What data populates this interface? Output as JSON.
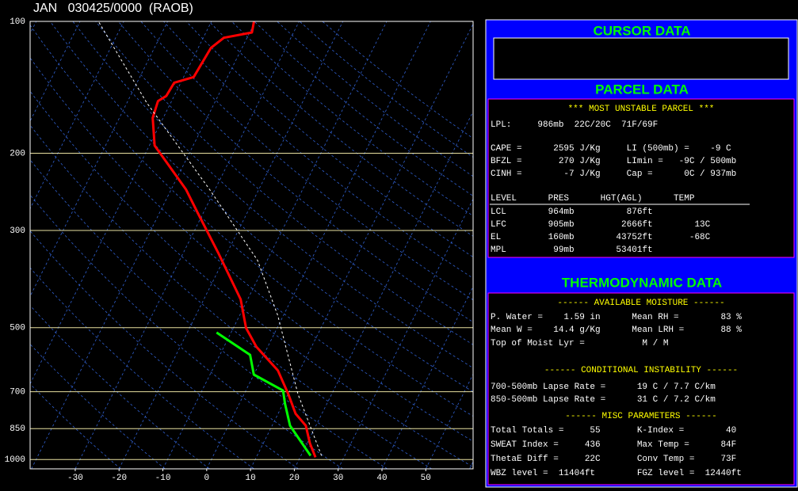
{
  "chart_data": {
    "type": "skewt",
    "title": "JAN   030425/0000  (RAOB)",
    "ylim": [
      100,
      1050
    ],
    "yticks": [
      100,
      200,
      300,
      500,
      700,
      850,
      1000
    ],
    "log_scale": true,
    "grid": true,
    "xlim": [
      -40.3,
      60.8
    ],
    "xticks": [
      -30,
      -20,
      -10,
      0,
      10,
      20,
      30,
      40,
      50
    ],
    "series": [
      {
        "name": "Temperature",
        "color": "#ff0000",
        "pressure": [
          988,
          917,
          837,
          786,
          709,
          626,
          553,
          501,
          431,
          337,
          274,
          242,
          192,
          166,
          152,
          148,
          138,
          134,
          115,
          109,
          106,
          100
        ],
        "values": [
          23.5,
          20.6,
          17.7,
          14.0,
          10.1,
          5.0,
          -2.6,
          -7.1,
          -11.6,
          -22.1,
          -31.2,
          -36.6,
          -48.8,
          -52.4,
          -53.1,
          -51.8,
          -51.5,
          -47.7,
          -47.1,
          -45.3,
          -39.5,
          -40.3
        ]
      },
      {
        "name": "Dewpoint",
        "color": "#00ff00",
        "pressure": [
          980,
          917,
          837,
          745,
          696,
          640,
          577,
          513
        ],
        "values": [
          22.2,
          18.8,
          14.1,
          10.4,
          8.5,
          0.0,
          -3.1,
          -13.3
        ]
      },
      {
        "name": "Parcel",
        "color": "#ffffff",
        "pressure": [
          980,
          709,
          469,
          351,
          242,
          153,
          100
        ],
        "values": [
          24.7,
          12.3,
          -1.3,
          -12.2,
          -31.2,
          -55.6,
          -75.8
        ]
      }
    ]
  },
  "panel": {
    "cursor_title": "CURSOR DATA",
    "parcel_title": "PARCEL DATA",
    "parcel_header": "*** MOST UNSTABLE PARCEL ***",
    "parcel_lines": [
      "LPL:     986mb  22C/20C  71F/69F",
      "CAPE =      2595 J/Kg     LI (500mb) =    -9 C",
      "BFZL =       270 J/Kg     LImin =   -9C / 500mb",
      "CINH =        -7 J/Kg     Cap =      0C / 937mb"
    ],
    "level_header": "LEVEL      PRES      HGT(AGL)      TEMP",
    "level_lines": [
      "LCL        964mb          876ft",
      "LFC        905mb         2666ft        13C",
      "EL         160mb        43752ft       -68C",
      "MPL         99mb        53401ft"
    ],
    "thermo_title": "THERMODYNAMIC DATA",
    "moisture_header": "------ AVAILABLE MOISTURE ------",
    "moisture_lines": [
      "P. Water =    1.59 in      Mean RH =        83 %",
      "Mean W =    14.4 g/Kg      Mean LRH =       88 %",
      "Top of Moist Lyr =           M / M"
    ],
    "instability_header": "------ CONDITIONAL INSTABILITY ------",
    "instability_lines": [
      "700-500mb Lapse Rate =      19 C / 7.7 C/km",
      "850-500mb Lapse Rate =      31 C / 7.2 C/km"
    ],
    "misc_header": "------ MISC PARAMETERS ------",
    "misc_lines": [
      "Total Totals =     55       K-Index =        40",
      "SWEAT Index =     436       Max Temp =      84F",
      "ThetaE Diff =     22C       Conv Temp =     73F",
      "WBZ level =  11404ft        FGZ level =  12440ft"
    ]
  }
}
